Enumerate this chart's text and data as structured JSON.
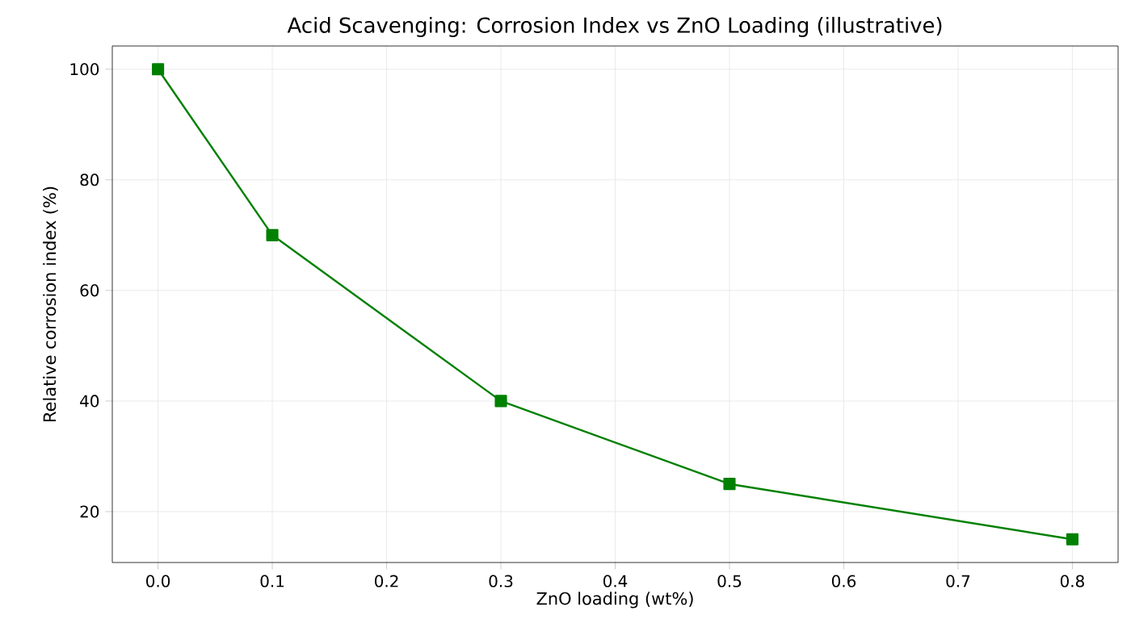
{
  "chart_data": {
    "type": "line",
    "title": "Acid Scavenging: Corrosion Index vs ZnO Loading (illustrative)",
    "xlabel": "ZnO loading (wt%)",
    "ylabel": "Relative corrosion index (%)",
    "x": [
      0,
      0.1,
      0.3,
      0.5,
      0.8
    ],
    "series": [
      {
        "color": "#008000",
        "values": [
          100,
          70,
          40,
          25,
          15
        ]
      }
    ],
    "xlim": [
      -0.04,
      0.84
    ],
    "ylim": [
      10.8,
      104.2
    ],
    "xticks": [
      {
        "value": 0,
        "label": "0.0"
      },
      0.1,
      0.2,
      0.3,
      0.4,
      0.5,
      0.6,
      0.7,
      0.8
    ],
    "yticks": [
      20,
      40,
      60,
      80,
      100
    ],
    "grid": true,
    "marker": "square",
    "line_style": "solid"
  }
}
